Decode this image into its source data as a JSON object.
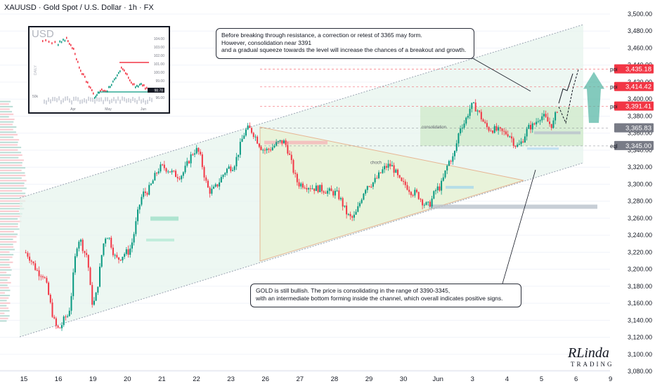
{
  "symbol_title": "XAUUSD · Gold Spot / U.S. Dollar · 1h · FX",
  "colors": {
    "up": "#089981",
    "down": "#f23645",
    "zone_green": "#4caf50",
    "zone_pink": "#f7a1a8",
    "channel_line": "#9aa3b2",
    "label_red": "#f23645",
    "label_gray": "#787b86",
    "bg": "#ffffff"
  },
  "chart_data": {
    "type": "candlestick",
    "y_axis": {
      "ticks": [
        3080,
        3100,
        3120,
        3140,
        3160,
        3180,
        3200,
        3220,
        3240,
        3260,
        3280,
        3300,
        3320,
        3340,
        3360,
        3380,
        3400,
        3420,
        3440,
        3460,
        3480,
        3500
      ],
      "tick_labels": [
        "3,080.00",
        "3,100.00",
        "3,120.00",
        "3,140.00",
        "3,160.00",
        "3,180.00",
        "3,200.00",
        "3,220.00",
        "3,240.00",
        "3,260.00",
        "3,280.00",
        "3,300.00",
        "3,320.00",
        "3,340.00",
        "3,360.00",
        "3,380.00",
        "3,400.00",
        "3,420.00",
        "3,440.00",
        "3,460.00",
        "3,480.00",
        "3,500.00"
      ],
      "range": [
        3070,
        3510
      ]
    },
    "x_axis": {
      "labels": [
        "15",
        "16",
        "19",
        "20",
        "21",
        "22",
        "23",
        "26",
        "27",
        "28",
        "29",
        "30",
        "Jun",
        "3",
        "4",
        "5",
        "6",
        "9"
      ]
    },
    "path": [
      {
        "i": 0,
        "p": 3220
      },
      {
        "i": 0.5,
        "p": 3195
      },
      {
        "i": 1,
        "p": 3130
      },
      {
        "i": 1.25,
        "p": 3145
      },
      {
        "i": 1.6,
        "p": 3235
      },
      {
        "i": 1.8,
        "p": 3218
      },
      {
        "i": 2,
        "p": 3160
      },
      {
        "i": 2.4,
        "p": 3240
      },
      {
        "i": 2.7,
        "p": 3212
      },
      {
        "i": 3,
        "p": 3220
      },
      {
        "i": 3.5,
        "p": 3290
      },
      {
        "i": 4,
        "p": 3320
      },
      {
        "i": 4.5,
        "p": 3310
      },
      {
        "i": 5,
        "p": 3340
      },
      {
        "i": 5.4,
        "p": 3292
      },
      {
        "i": 6,
        "p": 3320
      },
      {
        "i": 6.5,
        "p": 3365
      },
      {
        "i": 7,
        "p": 3340
      },
      {
        "i": 7.5,
        "p": 3350
      },
      {
        "i": 8,
        "p": 3300
      },
      {
        "i": 8.5,
        "p": 3295
      },
      {
        "i": 9,
        "p": 3290
      },
      {
        "i": 9.5,
        "p": 3260
      },
      {
        "i": 10,
        "p": 3300
      },
      {
        "i": 10.6,
        "p": 3322
      },
      {
        "i": 11,
        "p": 3300
      },
      {
        "i": 11.3,
        "p": 3290
      },
      {
        "i": 11.7,
        "p": 3275
      },
      {
        "i": 12,
        "p": 3295
      },
      {
        "i": 12.4,
        "p": 3330
      },
      {
        "i": 12.7,
        "p": 3370
      },
      {
        "i": 13,
        "p": 3392
      },
      {
        "i": 13.5,
        "p": 3365
      },
      {
        "i": 14,
        "p": 3360
      },
      {
        "i": 14.3,
        "p": 3345
      },
      {
        "i": 14.7,
        "p": 3368
      },
      {
        "i": 15,
        "p": 3380
      },
      {
        "i": 15.3,
        "p": 3370
      },
      {
        "i": 15.5,
        "p": 3391
      }
    ],
    "price_labels": [
      {
        "value": 3435.18,
        "text": "3,435.18",
        "style": "red",
        "tag": "poi"
      },
      {
        "value": 3414.42,
        "text": "3,414.42",
        "style": "red",
        "tag": "poi"
      },
      {
        "value": 3391.41,
        "text": "3,391.41",
        "style": "red",
        "tag": "poi"
      },
      {
        "value": 3365.83,
        "text": "3,365.83",
        "style": "gray",
        "tag": ""
      },
      {
        "value": 3345.0,
        "text": "3,345.00",
        "style": "gray",
        "tag": "eql"
      }
    ],
    "annotations": {
      "consolidation": "consolidation",
      "choch": "choch"
    }
  },
  "inset": {
    "title": "USD",
    "side_label": "DAILY",
    "y_ticks": [
      "104.00",
      "103.00",
      "102.00",
      "101.00",
      "100.00",
      "99.00",
      "98.00",
      "96.00"
    ],
    "last_value": "98.78",
    "x_labels": [
      "Apr",
      "May",
      "Jun"
    ],
    "volume_label": "50k"
  },
  "callouts": {
    "top": "Before breaking through resistance, a correction or retest of 3365 may form.\nHowever, consolidation near 3391\nand a gradual squeeze towards the level will increase the chances of a breakout and growth.",
    "bottom": "GOLD is still bullish. The price is consolidating in the range of 3390-3345,\nwith an intermediate bottom forming inside the channel, which overall indicates positive signs."
  },
  "logo": {
    "main": "RLinda",
    "sub": "TRADING"
  }
}
